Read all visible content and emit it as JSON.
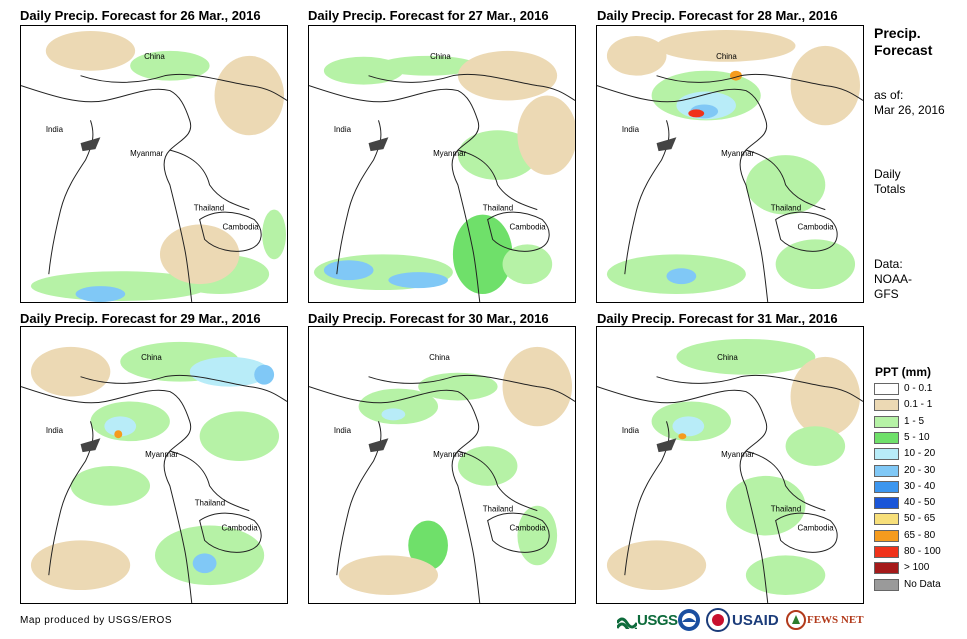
{
  "panels": [
    {
      "title": "Daily Precip. Forecast for 26 Mar., 2016",
      "labels": {
        "china": "China",
        "india": "India",
        "myanmar": "Myanmar",
        "thailand": "Thailand",
        "cambodia": "Cambodia"
      }
    },
    {
      "title": "Daily Precip. Forecast for 27 Mar., 2016",
      "labels": {
        "china": "China",
        "india": "India",
        "myanmar": "Myanmar",
        "thailand": "Thailand",
        "cambodia": "Cambodia"
      }
    },
    {
      "title": "Daily Precip. Forecast for 28 Mar., 2016",
      "labels": {
        "china": "China",
        "india": "India",
        "myanmar": "Myanmar",
        "thailand": "Thailand",
        "cambodia": "Cambodia"
      }
    },
    {
      "title": "Daily Precip. Forecast for 29 Mar., 2016",
      "labels": {
        "china": "China",
        "india": "India",
        "myanmar": "Myanmar",
        "thailand": "Thailand",
        "cambodia": "Cambodia"
      }
    },
    {
      "title": "Daily Precip. Forecast for 30 Mar., 2016",
      "labels": {
        "china": "China",
        "india": "India",
        "myanmar": "Myanmar",
        "thailand": "Thailand",
        "cambodia": "Cambodia"
      }
    },
    {
      "title": "Daily Precip. Forecast for 31 Mar., 2016",
      "labels": {
        "china": "China",
        "india": "India",
        "myanmar": "Myanmar",
        "thailand": "Thailand",
        "cambodia": "Cambodia"
      }
    }
  ],
  "sidebar": {
    "title_line1": "Precip.",
    "title_line2": "Forecast",
    "asof_line1": "as of:",
    "asof_line2": "Mar 26, 2016",
    "daily_line1": "Daily",
    "daily_line2": "Totals",
    "data_line1": "Data:",
    "data_line2": "NOAA-",
    "data_line3": "GFS"
  },
  "legend": {
    "title": "PPT (mm)",
    "items": [
      {
        "label": "0 - 0.1",
        "color": "#ffffff"
      },
      {
        "label": "0.1 - 1",
        "color": "#ecd9b4"
      },
      {
        "label": "1 - 5",
        "color": "#b6f2a6"
      },
      {
        "label": "5 - 10",
        "color": "#6fe06a"
      },
      {
        "label": "10 - 20",
        "color": "#b8ecf8"
      },
      {
        "label": "20 - 30",
        "color": "#80c8f6"
      },
      {
        "label": "30 - 40",
        "color": "#3c96ef"
      },
      {
        "label": "40 - 50",
        "color": "#1a55d8"
      },
      {
        "label": "50 - 65",
        "color": "#f7df7a"
      },
      {
        "label": "65 - 80",
        "color": "#f59b1e"
      },
      {
        "label": "80 - 100",
        "color": "#f0321a"
      },
      {
        "label": "> 100",
        "color": "#a51a1a"
      },
      {
        "label": "No Data",
        "color": "#9a9a9a"
      }
    ]
  },
  "credit": "Map produced by USGS/EROS",
  "logos": {
    "usgs": "USGS",
    "usaid": "USAID",
    "fewsnet": "FEWS NET"
  }
}
